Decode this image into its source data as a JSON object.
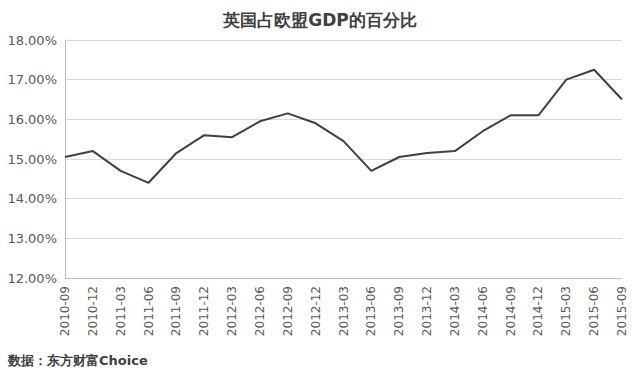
{
  "chart_data": {
    "type": "line",
    "title": "英国占欧盟GDP的百分比",
    "source": "数据：东方财富Choice",
    "categories": [
      "2010-09",
      "2010-12",
      "2011-03",
      "2011-06",
      "2011-09",
      "2011-12",
      "2012-03",
      "2012-06",
      "2012-09",
      "2012-12",
      "2013-03",
      "2013-06",
      "2013-09",
      "2013-12",
      "2014-03",
      "2014-06",
      "2014-09",
      "2014-12",
      "2015-03",
      "2015-06",
      "2015-09"
    ],
    "values": [
      15.05,
      15.2,
      14.7,
      14.4,
      15.15,
      15.6,
      15.55,
      15.95,
      16.15,
      15.9,
      15.45,
      14.7,
      15.05,
      15.15,
      15.2,
      15.7,
      16.1,
      16.1,
      17.0,
      17.25,
      16.5
    ],
    "color": "#404040",
    "line_style": "solid",
    "marker": "none",
    "ylim": [
      12,
      18
    ],
    "yticks": [
      {
        "value": 12,
        "label": "12.00%"
      },
      {
        "value": 13,
        "label": "13.00%"
      },
      {
        "value": 14,
        "label": "14.00%"
      },
      {
        "value": 15,
        "label": "15.00%"
      },
      {
        "value": 16,
        "label": "16.00%"
      },
      {
        "value": 17,
        "label": "17.00%"
      },
      {
        "value": 18,
        "label": "18.00%"
      }
    ],
    "grid": true
  }
}
